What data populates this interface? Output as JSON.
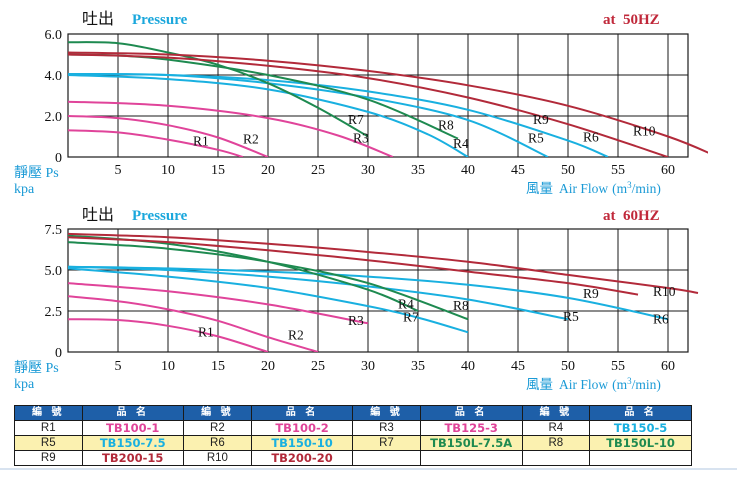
{
  "charts": [
    {
      "title_cn": "吐出",
      "title_en": "Pressure",
      "freq_label": "at  50HZ",
      "ylabel_cn": "靜壓 Ps",
      "ylabel_unit": "kpa",
      "xlabel_cn": "風量",
      "xlabel_en": "Air Flow",
      "xlabel_unit_pre": "(m",
      "xlabel_unit_sup": "3",
      "xlabel_unit_post": "/min)",
      "yticks": [
        "6.0",
        "4.0",
        "2.0",
        "0"
      ],
      "xticks": [
        "5",
        "10",
        "15",
        "20",
        "25",
        "30",
        "35",
        "40",
        "45",
        "50",
        "55",
        "60"
      ]
    },
    {
      "title_cn": "吐出",
      "title_en": "Pressure",
      "freq_label": "at  60HZ",
      "ylabel_cn": "靜壓 Ps",
      "ylabel_unit": "kpa",
      "xlabel_cn": "風量",
      "xlabel_en": "Air Flow",
      "xlabel_unit_pre": "(m",
      "xlabel_unit_sup": "3",
      "xlabel_unit_post": "/min)",
      "yticks": [
        "7.5",
        "5.0",
        "2.5",
        "0"
      ],
      "xticks": [
        "5",
        "10",
        "15",
        "20",
        "25",
        "30",
        "35",
        "40",
        "45",
        "50",
        "55",
        "60"
      ]
    }
  ],
  "chart_data": [
    {
      "type": "line",
      "title": "Pressure at 50HZ",
      "xlabel": "Air Flow (m3/min)",
      "ylabel": "Ps kpa",
      "xlim": [
        0,
        62
      ],
      "ylim": [
        0,
        6.0
      ],
      "grid": true,
      "series": [
        {
          "name": "R1",
          "color": "#e0449a",
          "x": [
            0,
            5,
            10,
            15,
            17.5
          ],
          "y": [
            1.3,
            1.2,
            0.85,
            0.35,
            0
          ]
        },
        {
          "name": "R2",
          "color": "#e0449a",
          "x": [
            0,
            5,
            10,
            15,
            20
          ],
          "y": [
            2.0,
            1.9,
            1.55,
            0.95,
            0
          ]
        },
        {
          "name": "R3",
          "color": "#e0449a",
          "x": [
            0,
            10,
            20,
            27,
            32.5
          ],
          "y": [
            2.7,
            2.5,
            1.9,
            1.05,
            0
          ]
        },
        {
          "name": "R4",
          "color": "#19b0e0",
          "x": [
            0,
            10,
            20,
            30,
            36,
            40
          ],
          "y": [
            4.0,
            3.8,
            3.3,
            2.2,
            1.1,
            0
          ]
        },
        {
          "name": "R5",
          "color": "#19b0e0",
          "x": [
            0,
            10,
            20,
            30,
            40,
            48
          ],
          "y": [
            4.05,
            4.0,
            3.6,
            2.9,
            1.8,
            0
          ]
        },
        {
          "name": "R6",
          "color": "#19b0e0",
          "x": [
            0,
            10,
            20,
            30,
            40,
            50,
            54
          ],
          "y": [
            4.05,
            4.0,
            3.75,
            3.2,
            2.3,
            0.8,
            0
          ]
        },
        {
          "name": "R7",
          "color": "#1e8a50",
          "x": [
            0,
            5,
            10,
            15,
            20,
            25,
            30
          ],
          "y": [
            5.6,
            5.55,
            5.1,
            4.5,
            3.6,
            2.4,
            1.0
          ]
        },
        {
          "name": "R8",
          "color": "#1e8a50",
          "x": [
            0,
            5,
            10,
            20,
            30,
            39
          ],
          "y": [
            5.0,
            4.95,
            4.75,
            4.0,
            2.8,
            0.9
          ]
        },
        {
          "name": "R9",
          "color": "#b22a3a",
          "x": [
            0,
            10,
            20,
            30,
            40,
            50,
            60
          ],
          "y": [
            5.0,
            4.85,
            4.45,
            3.85,
            2.9,
            1.6,
            0
          ]
        },
        {
          "name": "R10",
          "color": "#b22a3a",
          "x": [
            0,
            10,
            20,
            30,
            40,
            50,
            60,
            65
          ],
          "y": [
            5.1,
            5.0,
            4.7,
            4.2,
            3.5,
            2.5,
            1.0,
            0
          ]
        }
      ]
    },
    {
      "type": "line",
      "title": "Pressure at 60HZ",
      "xlabel": "Air Flow (m3/min)",
      "ylabel": "Ps kpa",
      "xlim": [
        0,
        62
      ],
      "ylim": [
        0,
        7.5
      ],
      "grid": true,
      "series": [
        {
          "name": "R1",
          "color": "#e0449a",
          "x": [
            0,
            5,
            10,
            15,
            20
          ],
          "y": [
            2.0,
            1.95,
            1.6,
            0.95,
            0
          ]
        },
        {
          "name": "R2",
          "color": "#e0449a",
          "x": [
            0,
            5,
            10,
            15,
            20,
            25
          ],
          "y": [
            3.4,
            3.1,
            2.6,
            1.9,
            0.9,
            0
          ]
        },
        {
          "name": "R3",
          "color": "#e0449a",
          "x": [
            0,
            10,
            20,
            30
          ],
          "y": [
            4.2,
            3.7,
            2.9,
            1.75
          ]
        },
        {
          "name": "R4",
          "color": "#19b0e0",
          "x": [
            0,
            10,
            20,
            30,
            35,
            40
          ],
          "y": [
            5.1,
            4.6,
            3.9,
            2.8,
            2.1,
            1.2
          ]
        },
        {
          "name": "R5",
          "color": "#19b0e0",
          "x": [
            0,
            10,
            20,
            30,
            40,
            50
          ],
          "y": [
            5.2,
            5.0,
            4.6,
            4.0,
            3.2,
            2.0
          ]
        },
        {
          "name": "R6",
          "color": "#19b0e0",
          "x": [
            0,
            10,
            20,
            30,
            40,
            50,
            60
          ],
          "y": [
            5.2,
            5.1,
            4.9,
            4.6,
            4.1,
            3.3,
            2.0
          ]
        },
        {
          "name": "R7",
          "color": "#1e8a50",
          "x": [
            0,
            10,
            20,
            30,
            35
          ],
          "y": [
            7.1,
            6.6,
            5.5,
            3.8,
            2.5
          ]
        },
        {
          "name": "R8",
          "color": "#1e8a50",
          "x": [
            0,
            10,
            20,
            30,
            40
          ],
          "y": [
            6.7,
            6.3,
            5.5,
            4.2,
            2.0
          ]
        },
        {
          "name": "R9",
          "color": "#b22a3a",
          "x": [
            0,
            10,
            20,
            30,
            40,
            50,
            57
          ],
          "y": [
            7.0,
            6.7,
            6.2,
            5.6,
            4.9,
            4.2,
            3.5
          ]
        },
        {
          "name": "R10",
          "color": "#b22a3a",
          "x": [
            0,
            10,
            20,
            30,
            40,
            50,
            60,
            63
          ],
          "y": [
            7.2,
            7.0,
            6.6,
            6.1,
            5.5,
            4.7,
            3.9,
            3.6
          ]
        }
      ]
    }
  ],
  "curve_labels": [
    [
      {
        "text": "R1",
        "x": 12.5,
        "y": 0.55
      },
      {
        "text": "R2",
        "x": 17.5,
        "y": 0.65
      },
      {
        "text": "R3",
        "x": 28.5,
        "y": 0.7
      },
      {
        "text": "R4",
        "x": 38.5,
        "y": 0.45
      },
      {
        "text": "R5",
        "x": 46.0,
        "y": 0.7
      },
      {
        "text": "R6",
        "x": 51.5,
        "y": 0.75
      },
      {
        "text": "R7",
        "x": 28.0,
        "y": 1.6
      },
      {
        "text": "R8",
        "x": 37.0,
        "y": 1.35
      },
      {
        "text": "R9",
        "x": 46.5,
        "y": 1.6
      },
      {
        "text": "R10",
        "x": 56.5,
        "y": 1.05
      }
    ],
    [
      {
        "text": "R1",
        "x": 13.0,
        "y": 0.95
      },
      {
        "text": "R2",
        "x": 22.0,
        "y": 0.75
      },
      {
        "text": "R3",
        "x": 28.0,
        "y": 1.65
      },
      {
        "text": "R4",
        "x": 33.0,
        "y": 2.65
      },
      {
        "text": "R5",
        "x": 49.5,
        "y": 1.9
      },
      {
        "text": "R6",
        "x": 58.5,
        "y": 1.75
      },
      {
        "text": "R7",
        "x": 33.5,
        "y": 1.85
      },
      {
        "text": "R8",
        "x": 38.5,
        "y": 2.55
      },
      {
        "text": "R9",
        "x": 51.5,
        "y": 3.3
      },
      {
        "text": "R10",
        "x": 58.5,
        "y": 3.4
      }
    ]
  ],
  "table": {
    "headers": [
      "編  號",
      "品  名",
      "編  號",
      "品  名",
      "編  號",
      "品  名",
      "編  號",
      "品  名"
    ],
    "rows": [
      [
        {
          "code": "R1",
          "name": "TB100-1",
          "color": "#e0449a"
        },
        {
          "code": "R2",
          "name": "TB100-2",
          "color": "#e0449a"
        },
        {
          "code": "R3",
          "name": "TB125-3",
          "color": "#e0449a"
        },
        {
          "code": "R4",
          "name": "TB150-5",
          "color": "#19b0e0"
        }
      ],
      [
        {
          "code": "R5",
          "name": "TB150-7.5",
          "color": "#19b0e0"
        },
        {
          "code": "R6",
          "name": "TB150-10",
          "color": "#19b0e0"
        },
        {
          "code": "R7",
          "name": "TB150L-7.5A",
          "color": "#1e8a50"
        },
        {
          "code": "R8",
          "name": "TB150L-10",
          "color": "#1e8a50"
        }
      ],
      [
        {
          "code": "R9",
          "name": "TB200-15",
          "color": "#b22a3a"
        },
        {
          "code": "R10",
          "name": "TB200-20",
          "color": "#b22a3a"
        },
        {
          "code": "",
          "name": "",
          "color": "#000000"
        },
        {
          "code": "",
          "name": "",
          "color": "#000000"
        }
      ]
    ]
  }
}
